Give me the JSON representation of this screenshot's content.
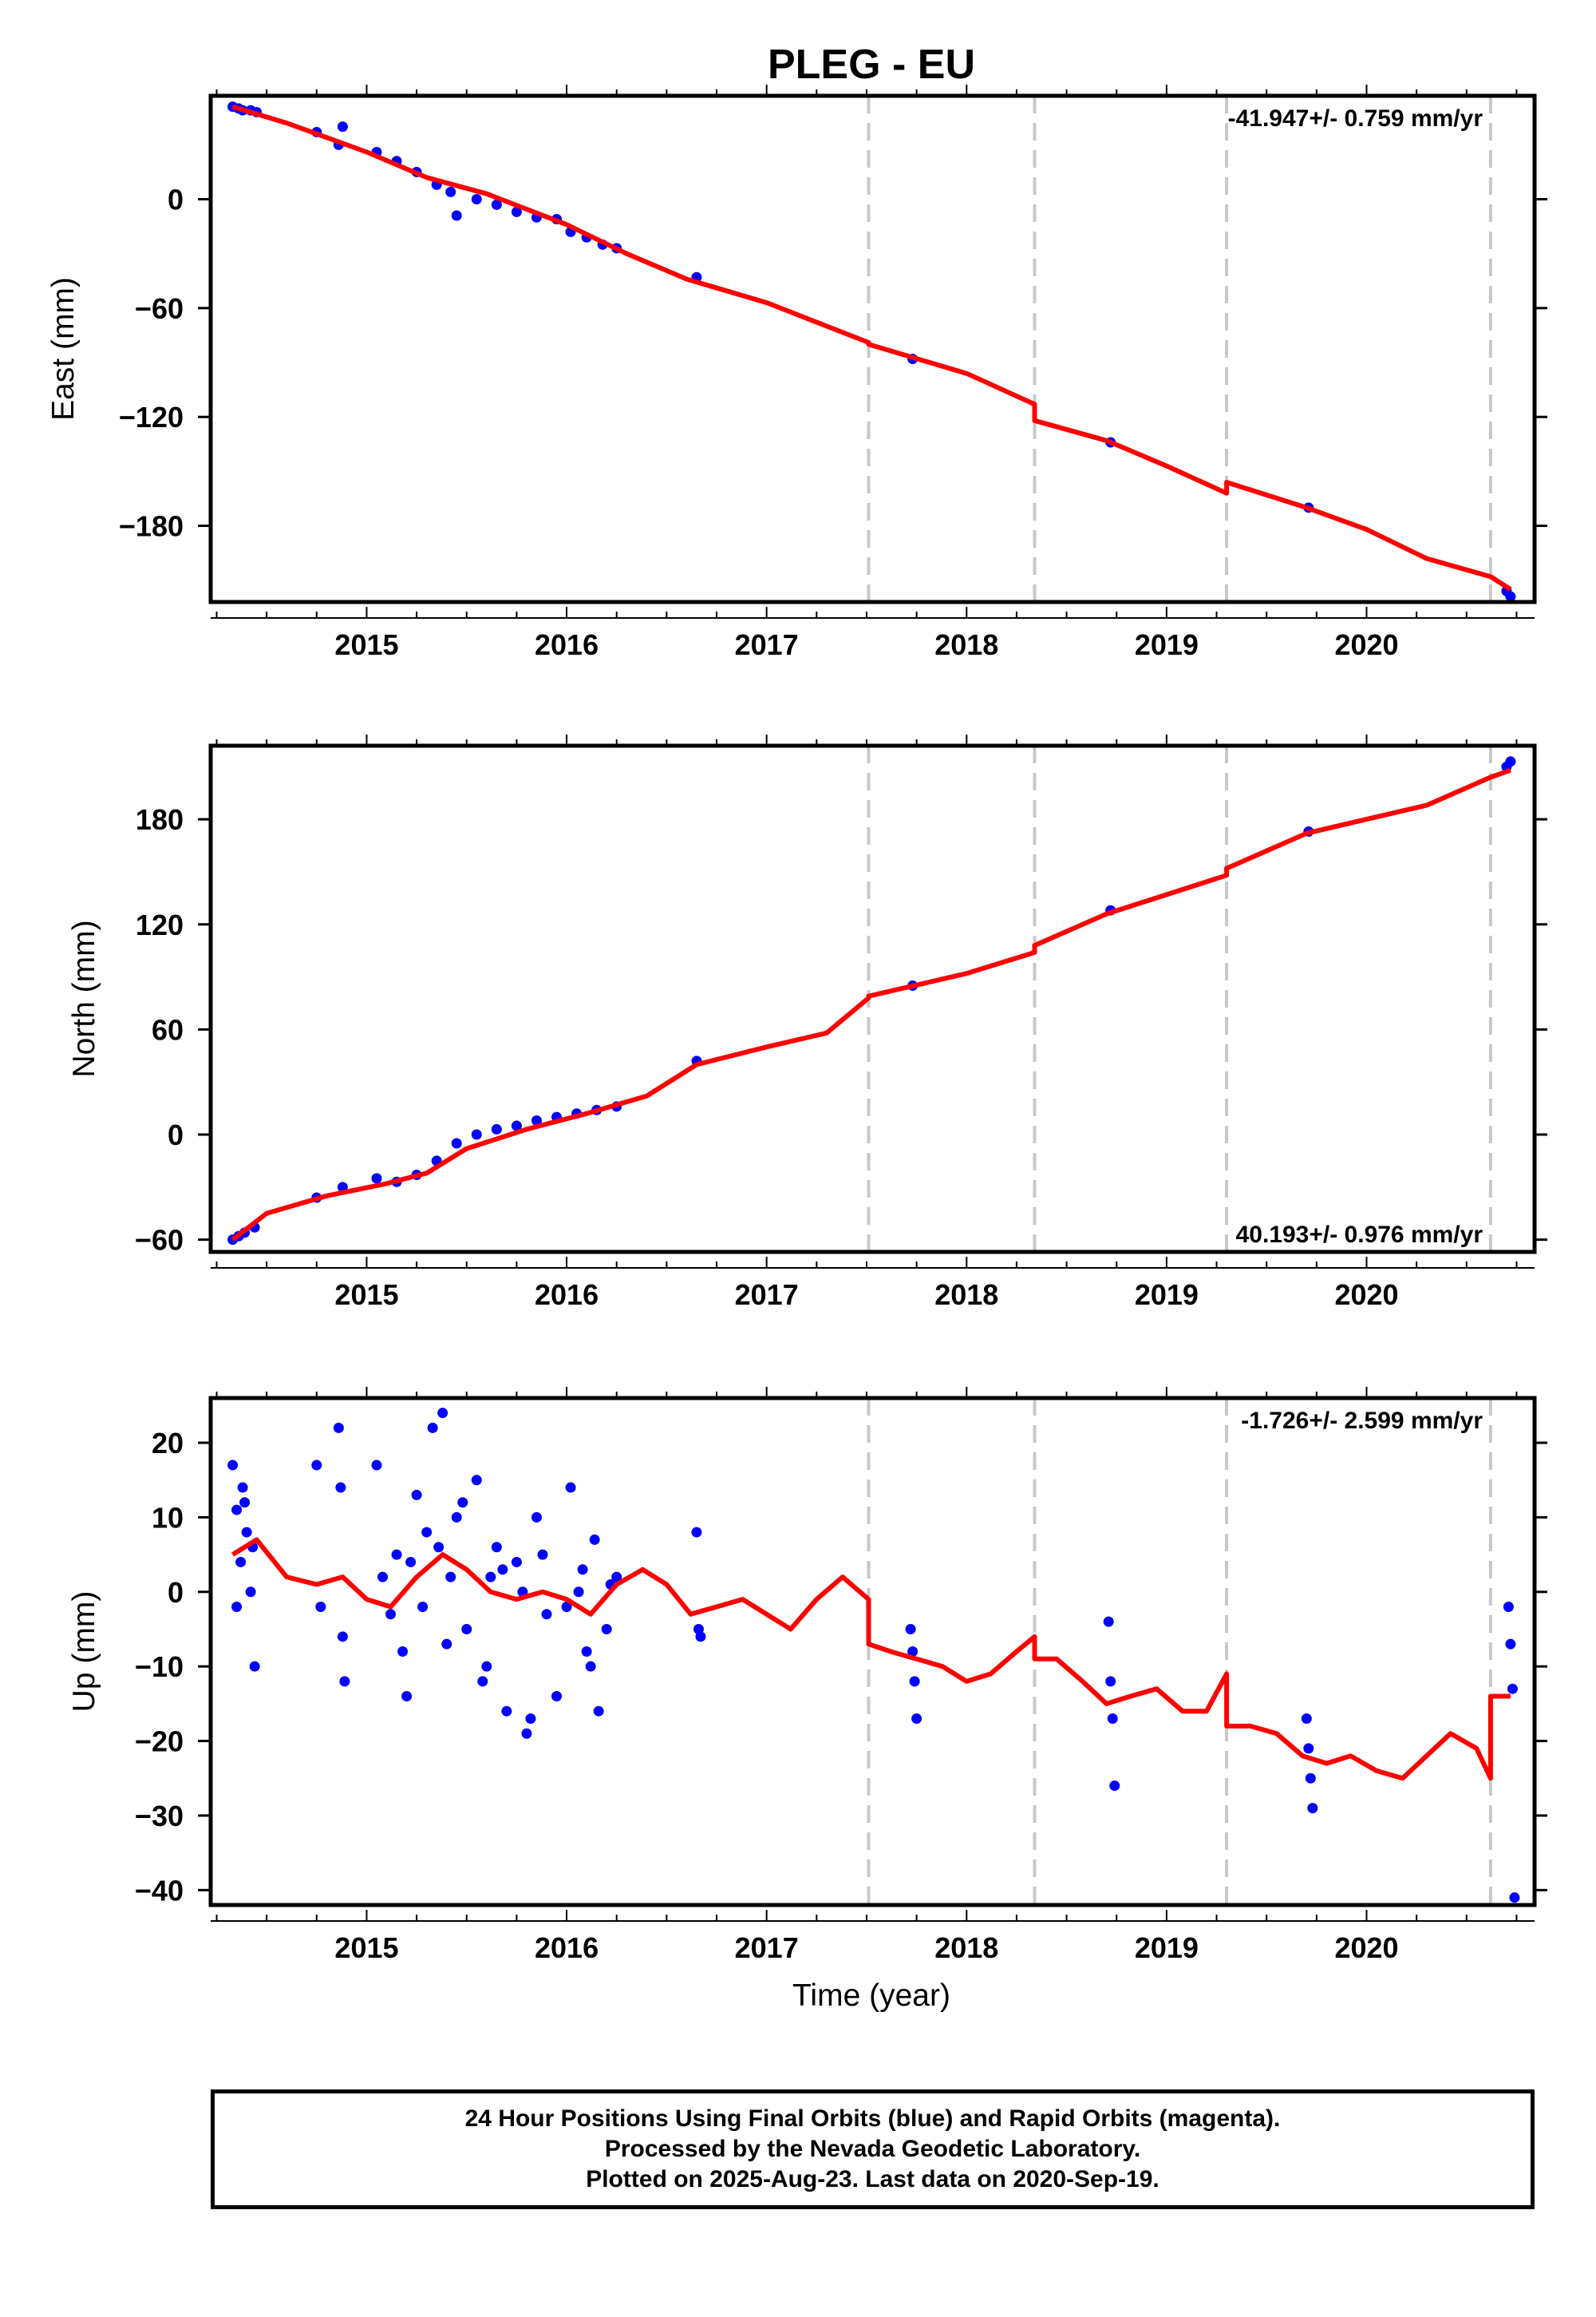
{
  "title": "PLEG - EU",
  "colors": {
    "data_points": "#0000ff",
    "model_line": "#ff0000",
    "offset_lines": "#c8c8c8"
  },
  "xaxis_label": "Time (year)",
  "chart_data": [
    {
      "type": "scatter",
      "title": "",
      "ylabel": "East (mm)",
      "xlim": [
        2014.22,
        2020.84
      ],
      "ylim": [
        -222,
        57
      ],
      "x_ticks": [
        "2015",
        "2016",
        "2017",
        "2018",
        "2019",
        "2020"
      ],
      "y_ticks": [
        "0",
        "-60",
        "-120",
        "-180"
      ],
      "rate_label": "-41.947+/- 0.759 mm/yr",
      "rate_position": "top-right",
      "offset_epochs": [
        2017.51,
        2018.34,
        2019.3,
        2020.62
      ],
      "series": [
        {
          "kind": "points",
          "x": [
            2014.33,
            2014.36,
            2014.38,
            2014.42,
            2014.45,
            2014.75,
            2014.86,
            2014.88,
            2015.05,
            2015.15,
            2015.25,
            2015.35,
            2015.42,
            2015.45,
            2015.55,
            2015.65,
            2015.75,
            2015.85,
            2015.95,
            2016.02,
            2016.1,
            2016.18,
            2016.25,
            2016.65,
            2017.73,
            2018.72,
            2019.71,
            2020.7,
            2020.72
          ],
          "y": [
            51,
            50,
            49,
            49,
            48,
            37,
            30,
            40,
            26,
            21,
            15,
            8,
            4,
            -9,
            0,
            -3,
            -7,
            -10,
            -11,
            -18,
            -21,
            -25,
            -27,
            -43,
            -88,
            -134,
            -170,
            -216,
            -219
          ]
        },
        {
          "kind": "line",
          "x": [
            2014.33,
            2014.6,
            2015.0,
            2015.3,
            2015.6,
            2016.0,
            2016.3,
            2016.6,
            2017.0,
            2017.51,
            2017.51,
            2018.0,
            2018.34,
            2018.34,
            2018.7,
            2019.0,
            2019.3,
            2019.3,
            2019.7,
            2020.0,
            2020.3,
            2020.62,
            2020.62,
            2020.72
          ],
          "y": [
            51,
            42,
            26,
            12,
            3,
            -14,
            -30,
            -44,
            -57,
            -79,
            -80,
            -96,
            -113,
            -122,
            -133,
            -147,
            -162,
            -156,
            -170,
            -182,
            -198,
            -208,
            -208,
            -215
          ]
        }
      ]
    },
    {
      "type": "scatter",
      "title": "",
      "ylabel": "North (mm)",
      "xlim": [
        2014.22,
        2020.84
      ],
      "ylim": [
        -67,
        222
      ],
      "x_ticks": [
        "2015",
        "2016",
        "2017",
        "2018",
        "2019",
        "2020"
      ],
      "y_ticks": [
        "180",
        "120",
        "60",
        "0",
        "-60"
      ],
      "rate_label": "40.193+/- 0.976 mm/yr",
      "rate_position": "bottom-right",
      "offset_epochs": [
        2017.51,
        2018.34,
        2019.3,
        2020.62
      ],
      "series": [
        {
          "kind": "points",
          "x": [
            2014.33,
            2014.36,
            2014.39,
            2014.44,
            2014.75,
            2014.88,
            2015.05,
            2015.15,
            2015.25,
            2015.35,
            2015.45,
            2015.55,
            2015.65,
            2015.75,
            2015.85,
            2015.95,
            2016.05,
            2016.15,
            2016.25,
            2016.65,
            2017.73,
            2018.72,
            2019.71,
            2020.7,
            2020.72
          ],
          "y": [
            -60,
            -58,
            -56,
            -53,
            -36,
            -30,
            -25,
            -27,
            -23,
            -15,
            -5,
            0,
            3,
            5,
            8,
            10,
            12,
            14,
            16,
            42,
            85,
            128,
            173,
            210,
            213
          ]
        },
        {
          "kind": "line",
          "x": [
            2014.33,
            2014.5,
            2014.8,
            2015.1,
            2015.3,
            2015.5,
            2015.8,
            2016.1,
            2016.4,
            2016.65,
            2017.0,
            2017.3,
            2017.51,
            2017.51,
            2018.0,
            2018.34,
            2018.34,
            2018.7,
            2019.0,
            2019.3,
            2019.3,
            2019.7,
            2020.0,
            2020.3,
            2020.62,
            2020.62,
            2020.72
          ],
          "y": [
            -60,
            -45,
            -35,
            -28,
            -22,
            -8,
            3,
            12,
            22,
            40,
            50,
            58,
            78,
            79,
            92,
            104,
            108,
            126,
            137,
            148,
            152,
            172,
            180,
            188,
            204,
            204,
            208
          ]
        }
      ]
    },
    {
      "type": "scatter",
      "title": "",
      "ylabel": "Up (mm)",
      "xlabel": "Time (year)",
      "xlim": [
        2014.22,
        2020.84
      ],
      "ylim": [
        -42,
        26
      ],
      "x_ticks": [
        "2015",
        "2016",
        "2017",
        "2018",
        "2019",
        "2020"
      ],
      "y_ticks": [
        "20",
        "10",
        "0",
        "-10",
        "-20",
        "-30",
        "-40"
      ],
      "rate_label": "-1.726+/- 2.599 mm/yr",
      "rate_position": "top-right",
      "offset_epochs": [
        2017.51,
        2018.34,
        2019.3,
        2020.62
      ],
      "series": [
        {
          "kind": "points",
          "x": [
            2014.33,
            2014.35,
            2014.37,
            2014.38,
            2014.4,
            2014.42,
            2014.44,
            2014.35,
            2014.39,
            2014.43,
            2014.75,
            2014.77,
            2014.86,
            2014.87,
            2014.89,
            2014.88,
            2015.05,
            2015.08,
            2015.12,
            2015.15,
            2015.2,
            2015.25,
            2015.3,
            2015.33,
            2015.38,
            2015.42,
            2015.45,
            2015.5,
            2015.55,
            2015.6,
            2015.65,
            2015.7,
            2015.75,
            2015.8,
            2015.85,
            2015.9,
            2015.95,
            2016.02,
            2016.06,
            2016.1,
            2016.14,
            2016.2,
            2016.25,
            2015.18,
            2015.28,
            2015.36,
            2015.48,
            2015.58,
            2015.68,
            2015.78,
            2015.88,
            2016.0,
            2016.08,
            2016.16,
            2016.22,
            2015.22,
            2015.4,
            2015.62,
            2015.82,
            2016.12,
            2016.65,
            2016.66,
            2016.67,
            2017.72,
            2017.73,
            2017.74,
            2017.75,
            2018.71,
            2018.72,
            2018.73,
            2018.74,
            2019.7,
            2019.71,
            2019.72,
            2019.73,
            2020.71,
            2020.72,
            2020.73,
            2020.74
          ],
          "y": [
            17,
            11,
            4,
            14,
            8,
            0,
            -10,
            -2,
            12,
            6,
            17,
            -2,
            22,
            14,
            -12,
            -6,
            17,
            2,
            -3,
            5,
            -14,
            13,
            8,
            22,
            24,
            2,
            10,
            -5,
            15,
            -10,
            6,
            -16,
            4,
            -19,
            10,
            -3,
            -14,
            14,
            0,
            -8,
            7,
            -5,
            2,
            -8,
            -2,
            6,
            12,
            -12,
            3,
            0,
            5,
            -2,
            3,
            -16,
            1,
            4,
            -7,
            2,
            -17,
            -10,
            8,
            -5,
            -6,
            -5,
            -8,
            -12,
            -17,
            -4,
            -12,
            -17,
            -26,
            -17,
            -21,
            -25,
            -29,
            -2,
            -7,
            -13,
            -41
          ]
        },
        {
          "kind": "line",
          "x": [
            2014.33,
            2014.45,
            2014.6,
            2014.75,
            2014.88,
            2015.0,
            2015.12,
            2015.25,
            2015.38,
            2015.5,
            2015.62,
            2015.75,
            2015.88,
            2016.0,
            2016.12,
            2016.25,
            2016.38,
            2016.5,
            2016.62,
            2016.75,
            2016.88,
            2017.0,
            2017.12,
            2017.25,
            2017.38,
            2017.51,
            2017.51,
            2017.62,
            2017.75,
            2017.88,
            2018.0,
            2018.12,
            2018.25,
            2018.34,
            2018.34,
            2018.45,
            2018.58,
            2018.7,
            2018.82,
            2018.95,
            2019.08,
            2019.2,
            2019.3,
            2019.3,
            2019.42,
            2019.55,
            2019.68,
            2019.8,
            2019.92,
            2020.05,
            2020.18,
            2020.3,
            2020.42,
            2020.55,
            2020.62,
            2020.62,
            2020.72
          ],
          "y": [
            5,
            7,
            2,
            1,
            2,
            -1,
            -2,
            2,
            5,
            3,
            0,
            -1,
            0,
            -1,
            -3,
            1,
            3,
            1,
            -3,
            -2,
            -1,
            -3,
            -5,
            -1,
            2,
            -1,
            -7,
            -8,
            -9,
            -10,
            -12,
            -11,
            -8,
            -6,
            -9,
            -9,
            -12,
            -15,
            -14,
            -13,
            -16,
            -16,
            -11,
            -18,
            -18,
            -19,
            -22,
            -23,
            -22,
            -24,
            -25,
            -22,
            -19,
            -21,
            -25,
            -14,
            -14
          ]
        }
      ]
    }
  ],
  "footer": {
    "line1": "24 Hour Positions Using Final Orbits (blue) and Rapid Orbits (magenta).",
    "line2": "Processed by the Nevada Geodetic Laboratory.",
    "line3": "Plotted on 2025-Aug-23. Last data on 2020-Sep-19."
  }
}
